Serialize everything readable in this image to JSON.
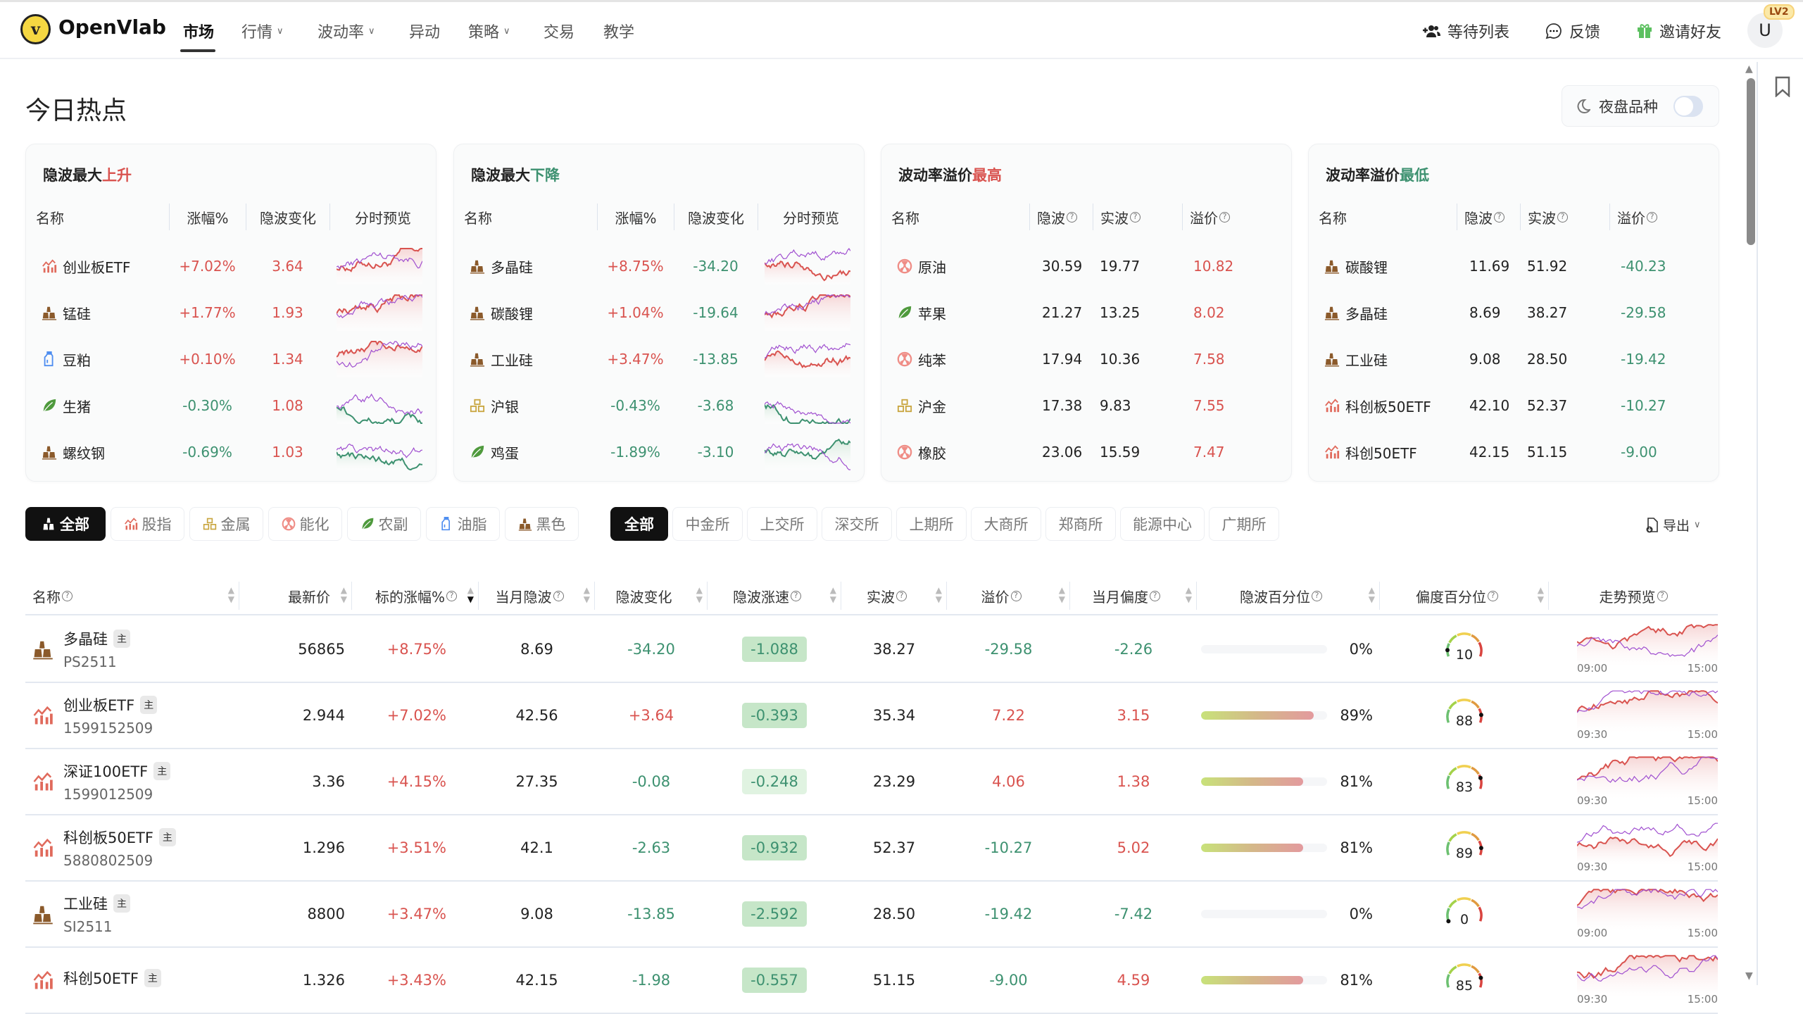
{
  "nav": {
    "brand": "OpenVlab",
    "logo_letter": "v",
    "items": [
      {
        "label": "市场",
        "active": true
      },
      {
        "label": "行情",
        "caret": true
      },
      {
        "label": "波动率",
        "caret": true
      },
      {
        "label": "异动"
      },
      {
        "label": "策略",
        "caret": true
      },
      {
        "label": "交易"
      },
      {
        "label": "教学"
      }
    ],
    "waitlist": "等待列表",
    "feedback": "反馈",
    "invite": "邀请好友",
    "avatar": "U",
    "level": "LV2"
  },
  "page": {
    "title": "今日热点",
    "night_label": "夜盘品种",
    "night_on": false
  },
  "colors": {
    "up": "#d9534f",
    "down": "#3d9170",
    "accent": "#111111"
  },
  "cards": [
    {
      "title": "隐波最大",
      "title_hl": "上升",
      "hl": "red",
      "headers": [
        "名称",
        "涨幅%",
        "隐波变化",
        "分时预览"
      ],
      "rows": [
        {
          "icon": "index",
          "name": "创业板ETF",
          "a": "+7.02%",
          "b": "3.64"
        },
        {
          "icon": "ferrous",
          "name": "锰硅",
          "a": "+1.77%",
          "b": "1.93"
        },
        {
          "icon": "oil",
          "name": "豆粕",
          "a": "+0.10%",
          "b": "1.34"
        },
        {
          "icon": "agri",
          "name": "生猪",
          "a": "-0.30%",
          "b": "1.08"
        },
        {
          "icon": "ferrous",
          "name": "螺纹钢",
          "a": "-0.69%",
          "b": "1.03"
        }
      ]
    },
    {
      "title": "隐波最大",
      "title_hl": "下降",
      "hl": "grn",
      "headers": [
        "名称",
        "涨幅%",
        "隐波变化",
        "分时预览"
      ],
      "rows": [
        {
          "icon": "ferrous",
          "name": "多晶硅",
          "a": "+8.75%",
          "b": "-34.20"
        },
        {
          "icon": "ferrous",
          "name": "碳酸锂",
          "a": "+1.04%",
          "b": "-19.64"
        },
        {
          "icon": "ferrous",
          "name": "工业硅",
          "a": "+3.47%",
          "b": "-13.85"
        },
        {
          "icon": "metal",
          "name": "沪银",
          "a": "-0.43%",
          "b": "-3.68"
        },
        {
          "icon": "agri",
          "name": "鸡蛋",
          "a": "-1.89%",
          "b": "-3.10"
        }
      ]
    },
    {
      "title": "波动率溢价",
      "title_hl": "最高",
      "hl": "red",
      "headers": [
        "名称",
        "隐波",
        "实波",
        "溢价"
      ],
      "rows": [
        {
          "icon": "energy",
          "name": "原油",
          "a": "30.59",
          "b": "19.77",
          "c": "10.82"
        },
        {
          "icon": "agri",
          "name": "苹果",
          "a": "21.27",
          "b": "13.25",
          "c": "8.02"
        },
        {
          "icon": "energy",
          "name": "纯苯",
          "a": "17.94",
          "b": "10.36",
          "c": "7.58"
        },
        {
          "icon": "metal",
          "name": "沪金",
          "a": "17.38",
          "b": "9.83",
          "c": "7.55"
        },
        {
          "icon": "energy",
          "name": "橡胶",
          "a": "23.06",
          "b": "15.59",
          "c": "7.47"
        }
      ]
    },
    {
      "title": "波动率溢价",
      "title_hl": "最低",
      "hl": "grn",
      "headers": [
        "名称",
        "隐波",
        "实波",
        "溢价"
      ],
      "rows": [
        {
          "icon": "ferrous",
          "name": "碳酸锂",
          "a": "11.69",
          "b": "51.92",
          "c": "-40.23"
        },
        {
          "icon": "ferrous",
          "name": "多晶硅",
          "a": "8.69",
          "b": "38.27",
          "c": "-29.58"
        },
        {
          "icon": "ferrous",
          "name": "工业硅",
          "a": "9.08",
          "b": "28.50",
          "c": "-19.42"
        },
        {
          "icon": "index",
          "name": "科创板50ETF",
          "a": "42.10",
          "b": "52.37",
          "c": "-10.27"
        },
        {
          "icon": "index",
          "name": "科创50ETF",
          "a": "42.15",
          "b": "51.15",
          "c": "-9.00"
        }
      ]
    }
  ],
  "filters": {
    "categories": [
      {
        "label": "全部",
        "icon": "all",
        "active": true
      },
      {
        "label": "股指",
        "icon": "index"
      },
      {
        "label": "金属",
        "icon": "metal"
      },
      {
        "label": "能化",
        "icon": "energy"
      },
      {
        "label": "农副",
        "icon": "agri"
      },
      {
        "label": "油脂",
        "icon": "oil"
      },
      {
        "label": "黑色",
        "icon": "ferrous"
      }
    ],
    "exchanges": [
      {
        "label": "全部",
        "active": true
      },
      {
        "label": "中金所"
      },
      {
        "label": "上交所"
      },
      {
        "label": "深交所"
      },
      {
        "label": "上期所"
      },
      {
        "label": "大商所"
      },
      {
        "label": "郑商所"
      },
      {
        "label": "能源中心"
      },
      {
        "label": "广期所"
      }
    ],
    "export": "导出"
  },
  "table": {
    "headers": [
      {
        "label": "名称",
        "q": true,
        "sort": true
      },
      {
        "label": "最新价",
        "sort": true
      },
      {
        "label": "标的涨幅%",
        "q": true,
        "sort": "desc"
      },
      {
        "label": "当月隐波",
        "q": true,
        "sort": true
      },
      {
        "label": "隐波变化",
        "sort": true
      },
      {
        "label": "隐波涨速",
        "q": true,
        "sort": true
      },
      {
        "label": "实波",
        "q": true,
        "sort": true
      },
      {
        "label": "溢价",
        "q": true,
        "sort": true
      },
      {
        "label": "当月偏度",
        "q": true,
        "sort": true
      },
      {
        "label": "隐波百分位",
        "q": true,
        "sort": true
      },
      {
        "label": "偏度百分位",
        "q": true,
        "sort": true
      },
      {
        "label": "走势预览",
        "q": true
      }
    ],
    "badge": "主",
    "rows": [
      {
        "icon": "ferrous",
        "name": "多晶硅",
        "code": "PS2511",
        "price": "56865",
        "chg": "+8.75%",
        "iv": "8.69",
        "ivchg": "-34.20",
        "speed": "-1.088",
        "rv": "38.27",
        "prem": "-29.58",
        "skew": "-2.26",
        "ivpct": 0,
        "ivpct_label": "0%",
        "skewpct": 10,
        "t0": "09:00",
        "t1": "15:00"
      },
      {
        "icon": "index",
        "name": "创业板ETF",
        "code": "1599152509",
        "price": "2.944",
        "chg": "+7.02%",
        "iv": "42.56",
        "ivchg": "+3.64",
        "speed": "-0.393",
        "rv": "35.34",
        "prem": "7.22",
        "skew": "3.15",
        "ivpct": 89,
        "ivpct_label": "89%",
        "skewpct": 88,
        "t0": "09:30",
        "t1": "15:00"
      },
      {
        "icon": "index",
        "name": "深证100ETF",
        "code": "1599012509",
        "price": "3.36",
        "chg": "+4.15%",
        "iv": "27.35",
        "ivchg": "-0.08",
        "speed": "-0.248",
        "rv": "23.29",
        "prem": "4.06",
        "skew": "1.38",
        "ivpct": 81,
        "ivpct_label": "81%",
        "skewpct": 83,
        "t0": "09:30",
        "t1": "15:00"
      },
      {
        "icon": "index",
        "name": "科创板50ETF",
        "code": "5880802509",
        "price": "1.296",
        "chg": "+3.51%",
        "iv": "42.1",
        "ivchg": "-2.63",
        "speed": "-0.932",
        "rv": "52.37",
        "prem": "-10.27",
        "skew": "5.02",
        "ivpct": 81,
        "ivpct_label": "81%",
        "skewpct": 89,
        "t0": "09:30",
        "t1": "15:00"
      },
      {
        "icon": "ferrous",
        "name": "工业硅",
        "code": "SI2511",
        "price": "8800",
        "chg": "+3.47%",
        "iv": "9.08",
        "ivchg": "-13.85",
        "speed": "-2.592",
        "rv": "28.50",
        "prem": "-19.42",
        "skew": "-7.42",
        "ivpct": 0,
        "ivpct_label": "0%",
        "skewpct": 0,
        "t0": "09:00",
        "t1": "15:00"
      },
      {
        "icon": "index",
        "name": "科创50ETF",
        "code": "",
        "price": "1.326",
        "chg": "+3.43%",
        "iv": "42.15",
        "ivchg": "-1.98",
        "speed": "-0.557",
        "rv": "51.15",
        "prem": "-9.00",
        "skew": "4.59",
        "ivpct": 81,
        "ivpct_label": "81%",
        "skewpct": 85,
        "t0": "09:30",
        "t1": "15:00"
      }
    ]
  }
}
